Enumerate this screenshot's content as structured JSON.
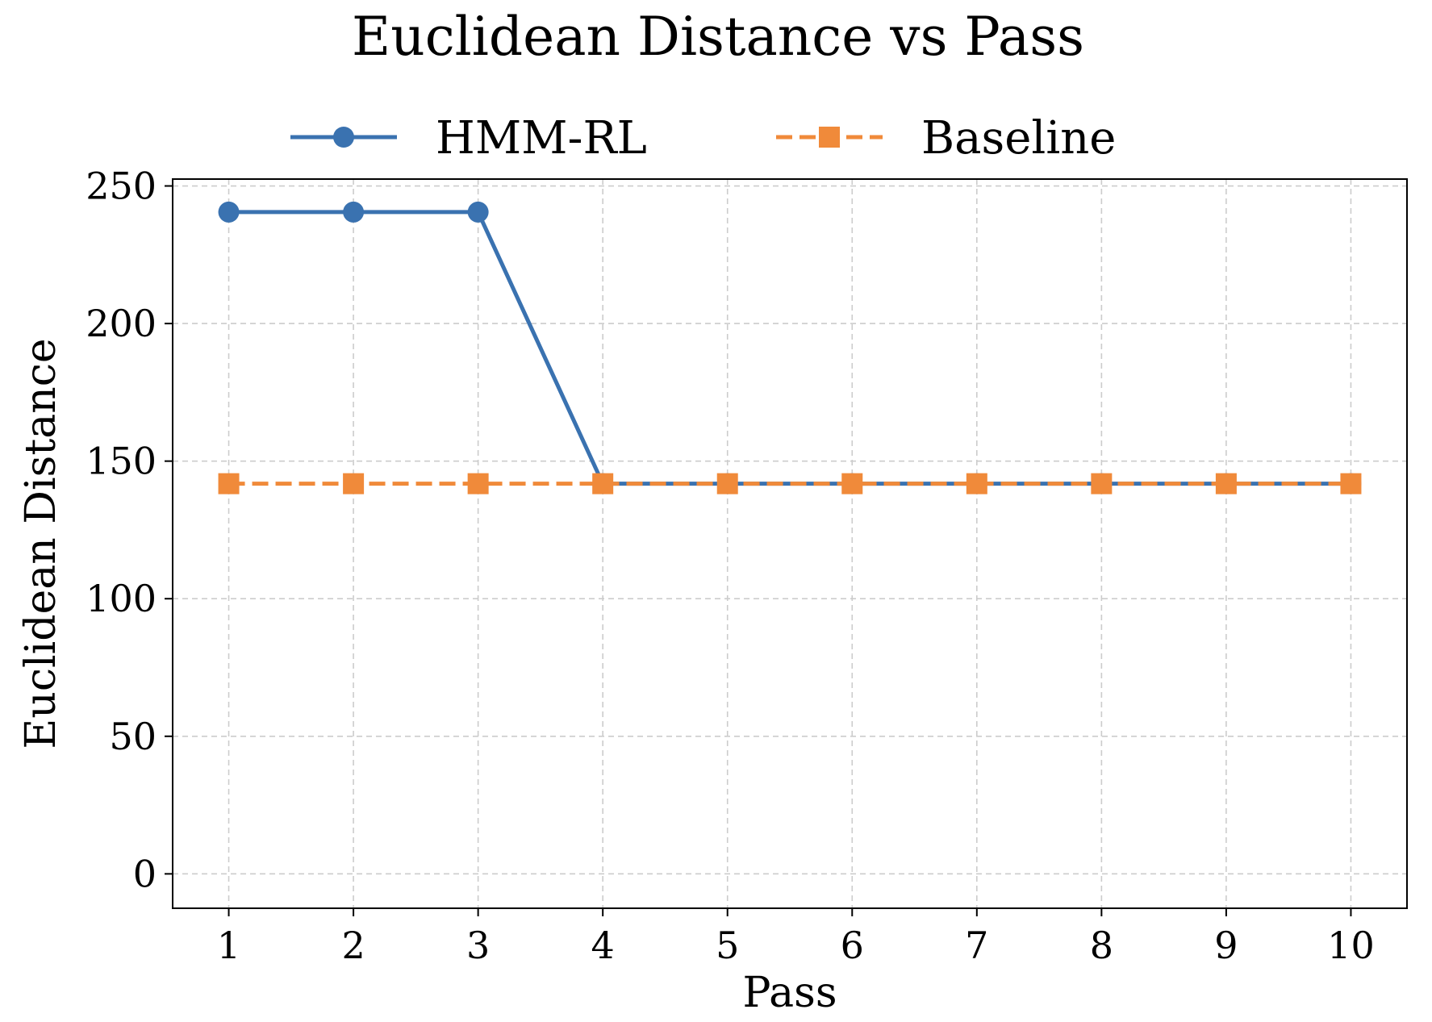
{
  "chart_data": {
    "type": "line",
    "title": "Euclidean Distance vs Pass",
    "xlabel": "Pass",
    "ylabel": "Euclidean Distance",
    "x": [
      1,
      2,
      3,
      4,
      5,
      6,
      7,
      8,
      9,
      10
    ],
    "xticks": [
      "1",
      "2",
      "3",
      "4",
      "5",
      "6",
      "7",
      "8",
      "9",
      "10"
    ],
    "yticks": [
      "0",
      "50",
      "100",
      "150",
      "200",
      "250"
    ],
    "ytick_values": [
      0,
      50,
      100,
      150,
      200,
      250
    ],
    "xlim": [
      0.55,
      10.45
    ],
    "ylim": [
      -12.5,
      252.5
    ],
    "grid": true,
    "legend_position": "top-center",
    "series": [
      {
        "name": "HMM-RL",
        "values": [
          240.5,
          240.5,
          240.5,
          141.8,
          141.8,
          141.8,
          141.8,
          141.8,
          141.8,
          141.8
        ],
        "color": "#3a72b0",
        "linestyle": "solid",
        "marker": "circle"
      },
      {
        "name": "Baseline",
        "values": [
          141.8,
          141.8,
          141.8,
          141.8,
          141.8,
          141.8,
          141.8,
          141.8,
          141.8,
          141.8
        ],
        "color": "#f08a3a",
        "linestyle": "dashed",
        "marker": "square"
      }
    ]
  }
}
